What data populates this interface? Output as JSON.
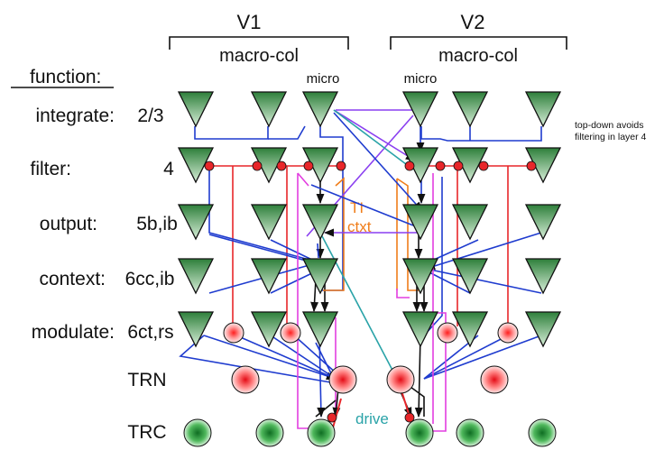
{
  "areas": {
    "v1": {
      "title": "V1",
      "group_label": "macro-col",
      "micro_label": "micro"
    },
    "v2": {
      "title": "V2",
      "group_label": "macro-col",
      "micro_label": "micro"
    }
  },
  "function_header": "function:",
  "rows": [
    {
      "label": "integrate:",
      "layer": "2/3"
    },
    {
      "label": "filter:",
      "layer": "4"
    },
    {
      "label": "output:",
      "layer": "5b,ib"
    },
    {
      "label": "context:",
      "layer": "6cc,ib"
    },
    {
      "label": "modulate:",
      "layer": "6ct,rs"
    }
  ],
  "thalamus": {
    "trn": "TRN",
    "trc": "TRC"
  },
  "annotations": {
    "top_down": [
      "top-down avoids",
      "filtering in layer 4"
    ],
    "ti": "TI",
    "ctxt": "ctxt",
    "drive": "drive"
  },
  "colors": {
    "pyramidal": "#3f9a4f",
    "inhibitory": "#e8262a",
    "blue": "#1f3ccf",
    "orange": "#f07d1a",
    "magenta": "#e23ee0",
    "purple": "#8a3ff0",
    "teal": "#2aa3a8",
    "thalamic_green": "#3faa4f",
    "trn_red": "#ff6a6a"
  }
}
